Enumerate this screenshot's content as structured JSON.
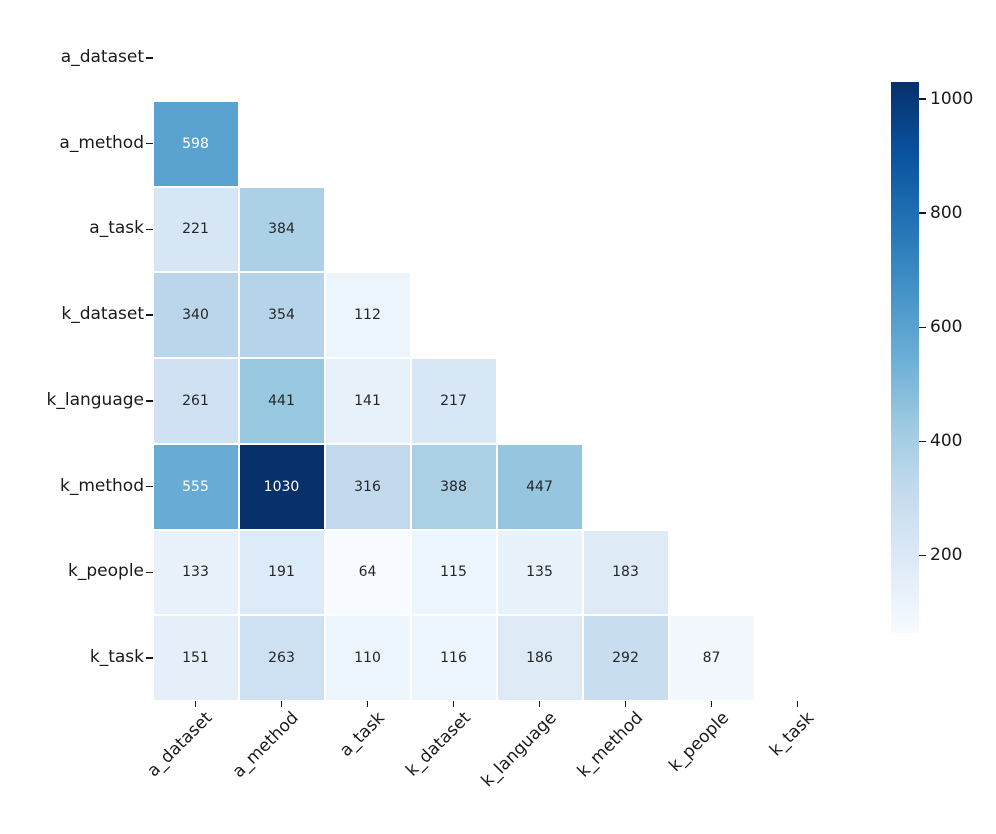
{
  "chart_data": {
    "type": "heatmap",
    "title": "",
    "xlabel": "",
    "ylabel": "",
    "categories": [
      "a_dataset",
      "a_method",
      "a_task",
      "k_dataset",
      "k_language",
      "k_method",
      "k_people",
      "k_task"
    ],
    "mask": "upper_triangle_including_diagonal",
    "rows": [
      {
        "label": "a_dataset",
        "values": []
      },
      {
        "label": "a_method",
        "values": [
          598
        ]
      },
      {
        "label": "a_task",
        "values": [
          221,
          384
        ]
      },
      {
        "label": "k_dataset",
        "values": [
          340,
          354,
          112
        ]
      },
      {
        "label": "k_language",
        "values": [
          261,
          441,
          141,
          217
        ]
      },
      {
        "label": "k_method",
        "values": [
          555,
          1030,
          316,
          388,
          447
        ]
      },
      {
        "label": "k_people",
        "values": [
          133,
          191,
          64,
          115,
          135,
          183
        ]
      },
      {
        "label": "k_task",
        "values": [
          151,
          263,
          110,
          116,
          186,
          292,
          87
        ]
      }
    ],
    "vmin": 64,
    "vmax": 1030,
    "colormap": "Blues",
    "colormap_anchors": [
      "#f7fbff",
      "#deebf7",
      "#c6dbef",
      "#9ecae1",
      "#6baed6",
      "#4292c6",
      "#2171b5",
      "#08519c",
      "#08306b"
    ],
    "cell_border_color": "#ffffff",
    "annotation_color_dark": "#262626",
    "annotation_color_light": "#ffffff",
    "colorbar": {
      "position": "right",
      "ticks": [
        200,
        400,
        600,
        800,
        1000
      ]
    },
    "legend": "none",
    "grid": "off",
    "background_color": "#ffffff"
  }
}
